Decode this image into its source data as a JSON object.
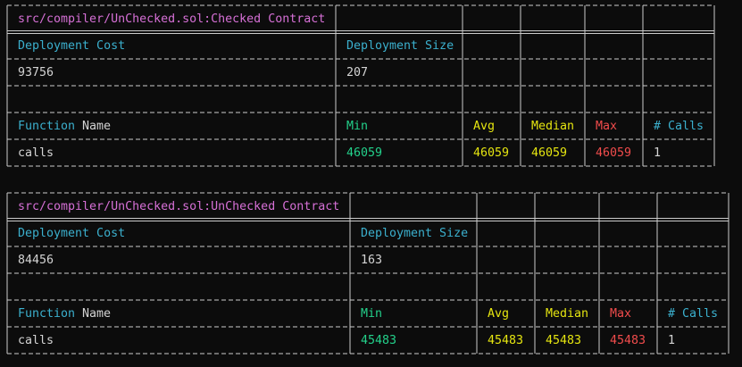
{
  "tables": [
    {
      "title": "src/compiler/UnChecked.sol:Checked Contract",
      "deployment_headers": [
        "Deployment Cost",
        "Deployment Size"
      ],
      "deployment_values": [
        93756,
        207
      ],
      "function_headers": {
        "name": [
          "Function",
          "Name"
        ],
        "stats": [
          "Min",
          "Avg",
          "Median",
          "Max",
          "# Calls"
        ]
      },
      "rows": [
        {
          "name": "calls",
          "stats": [
            46059,
            46059,
            46059,
            46059,
            1
          ]
        }
      ]
    },
    {
      "title": "src/compiler/UnChecked.sol:UnChecked Contract",
      "deployment_headers": [
        "Deployment Cost",
        "Deployment Size"
      ],
      "deployment_values": [
        84456,
        163
      ],
      "function_headers": {
        "name": [
          "Function",
          "Name"
        ],
        "stats": [
          "Min",
          "Avg",
          "Median",
          "Max",
          "# Calls"
        ]
      },
      "rows": [
        {
          "name": "calls",
          "stats": [
            45483,
            45483,
            45483,
            45483,
            1
          ]
        }
      ]
    }
  ]
}
